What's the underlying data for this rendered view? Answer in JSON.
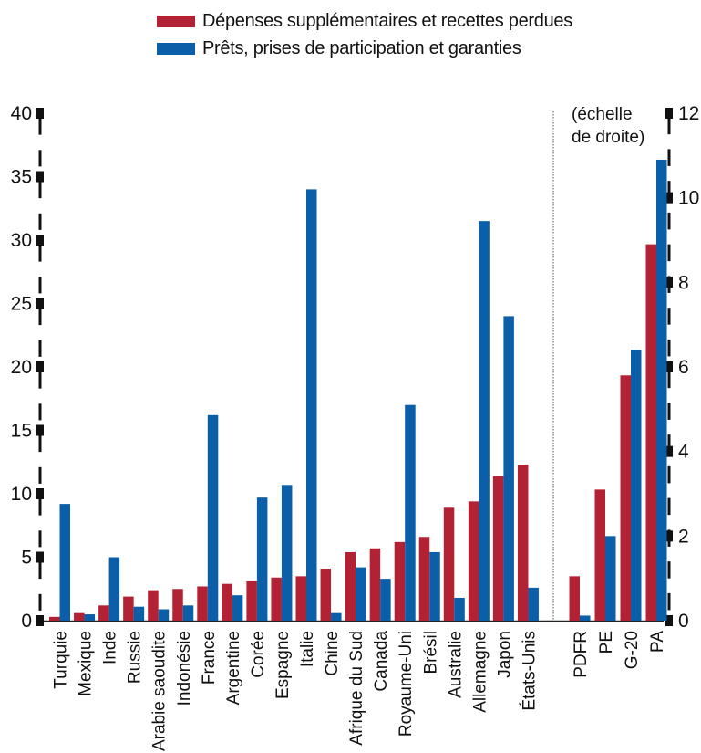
{
  "legend": [
    {
      "label": "Dépenses supplémentaires et recettes perdues",
      "color": "#b22234"
    },
    {
      "label": "Prêts, prises de participation et garanties",
      "color": "#0a5fa8"
    }
  ],
  "right_axis_note": [
    "(échelle",
    "de droite)"
  ],
  "chart_data": [
    {
      "type": "bar",
      "axis": "left",
      "ylim": [
        0,
        40
      ],
      "yticks": [
        0,
        5,
        10,
        15,
        20,
        25,
        30,
        35,
        40
      ],
      "categories": [
        "Turquie",
        "Mexique",
        "Inde",
        "Russie",
        "Arabie saoudite",
        "Indonésie",
        "France",
        "Argentine",
        "Corée",
        "Espagne",
        "Italie",
        "Chine",
        "Afrique du Sud",
        "Canada",
        "Royaume-Uni",
        "Brésil",
        "Australie",
        "Allemagne",
        "Japon",
        "États-Unis"
      ],
      "series": [
        {
          "name": "Dépenses supplémentaires et recettes perdues",
          "values": [
            0.3,
            0.6,
            1.2,
            1.9,
            2.4,
            2.5,
            2.7,
            2.9,
            3.1,
            3.4,
            3.5,
            4.1,
            5.4,
            5.7,
            6.2,
            6.6,
            8.9,
            9.4,
            11.4,
            12.3
          ]
        },
        {
          "name": "Prêts, prises de participation et garanties",
          "values": [
            9.2,
            0.5,
            5.0,
            1.1,
            0.9,
            1.2,
            16.2,
            2.0,
            9.7,
            10.7,
            34.0,
            0.6,
            4.2,
            3.3,
            17.0,
            5.4,
            1.8,
            31.5,
            24.0,
            2.6
          ]
        }
      ]
    },
    {
      "type": "bar",
      "axis": "right",
      "ylim": [
        0,
        12
      ],
      "yticks": [
        0,
        2,
        4,
        6,
        8,
        10,
        12
      ],
      "categories": [
        "PDFR",
        "PE",
        "G-20",
        "PA"
      ],
      "series": [
        {
          "name": "Dépenses supplémentaires et recettes perdues",
          "values": [
            1.05,
            3.1,
            5.8,
            8.9
          ]
        },
        {
          "name": "Prêts, prises de participation et garanties",
          "values": [
            0.12,
            2.0,
            6.4,
            10.9
          ]
        }
      ]
    }
  ]
}
